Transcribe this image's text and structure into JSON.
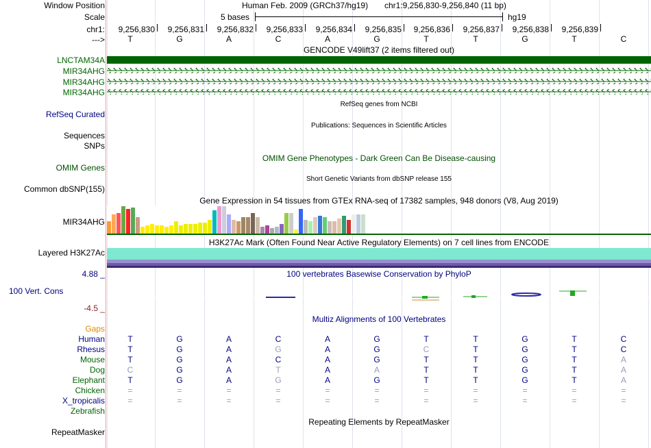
{
  "position": {
    "label": "Window Position",
    "assembly": "Human Feb. 2009 (GRCh37/hg19)",
    "coords": "chr1:9,256,830-9,256,840 (11 bp)"
  },
  "scale": {
    "label": "Scale",
    "bar_text": "5 bases",
    "db": "hg19"
  },
  "ruler": {
    "chrom_label": "chr1:",
    "strand_label": "--->",
    "ticks": [
      "9,256,830",
      "9,256,831",
      "9,256,832",
      "9,256,833",
      "9,256,834",
      "9,256,835",
      "9,256,836",
      "9,256,837",
      "9,256,838",
      "9,256,839"
    ]
  },
  "bases": [
    "T",
    "G",
    "A",
    "C",
    "A",
    "G",
    "T",
    "T",
    "G",
    "T",
    "C"
  ],
  "gencode": {
    "title": "GENCODE V49lift37 (2 items filtered out)",
    "items": [
      "LNCTAM34A",
      "MIR34AHG",
      "MIR34AHG",
      "MIR34AHG"
    ],
    "color": "#006400"
  },
  "refseq": {
    "label": "RefSeq Curated",
    "title": "RefSeq genes from NCBI"
  },
  "publications": {
    "label_1": "Sequences",
    "label_2": "SNPs",
    "title": "Publications: Sequences in Scientific Articles"
  },
  "omim": {
    "label": "OMIM Genes",
    "title": "OMIM Gene Phenotypes - Dark Green Can Be Disease-causing"
  },
  "dbsnp": {
    "label": "Common dbSNP(155)",
    "title": "Short Genetic Variants from dbSNP release 155"
  },
  "gtex": {
    "title": "Gene Expression in 54 tissues from GTEx RNA-seq of 17382 samples, 948 donors (V8, Aug 2019)",
    "label": "MIR34AHG",
    "levels": [
      0.45,
      0.7,
      0.75,
      1.0,
      0.9,
      0.95,
      0.6,
      0.25,
      0.3,
      0.35,
      0.3,
      0.3,
      0.25,
      0.3,
      0.45,
      0.3,
      0.35,
      0.35,
      0.35,
      0.4,
      0.4,
      0.5,
      0.85,
      1.0,
      1.0,
      0.7,
      0.5,
      0.45,
      0.6,
      0.6,
      0.75,
      0.6,
      0.25,
      0.3,
      0.2,
      0.25,
      0.35,
      0.75,
      0.75,
      0.15,
      0.9,
      0.5,
      0.45,
      0.6,
      0.65,
      0.6,
      0.45,
      0.45,
      0.55,
      0.65,
      0.5,
      0.7,
      0.7,
      0.7
    ],
    "colors": [
      "#ff9933",
      "#ffaa55",
      "#ff5555",
      "#66aa44",
      "#ff2222",
      "#55aa55",
      "#cc9988",
      "#ffee00",
      "#ffee00",
      "#ffee00",
      "#ffee00",
      "#ffee00",
      "#ffee00",
      "#ffee00",
      "#eeee00",
      "#eeee00",
      "#eeee00",
      "#eeee00",
      "#eeee00",
      "#eeee00",
      "#eeee00",
      "#eeee00",
      "#00bbbb",
      "#ee99cc",
      "#ccccdd",
      "#aaaaff",
      "#ddbbaa",
      "#cc9966",
      "#998866",
      "#aa8866",
      "#776655",
      "#ccbbaa",
      "#aa88aa",
      "#aa4499",
      "#aaaaaa",
      "#aabbcc",
      "#8866bb",
      "#99cc44",
      "#cccccc",
      "#ffee44",
      "#3366ff",
      "#bbbbbb",
      "#aaeeaa",
      "#ddccbb",
      "#3377dd",
      "#66cc77",
      "#ccbbbb",
      "#ddbbaa",
      "#ddccaa",
      "#339977",
      "#cc3333",
      "#eeeeee",
      "#bbccdd",
      "#ccddcc"
    ]
  },
  "h3k27ac": {
    "label": "Layered H3K27Ac",
    "title": "H3K27Ac Mark (Often Found Near Active Regulatory Elements) on 7 cell lines from ENCODE",
    "colors": [
      "#7fe8d0",
      "#9a8fd0",
      "#6e5aa6",
      "#3c2a78"
    ]
  },
  "conservation": {
    "label": "100 Vert. Cons",
    "max": "4.88 _",
    "min": "-4.5 _",
    "title": "100 vertebrates Basewise Conservation by PhyloP"
  },
  "multiz": {
    "title": "Multiz Alignments of 100 Vertebrates",
    "gaps_label": "Gaps",
    "species": [
      {
        "name": "Human",
        "color": "#000080",
        "bases": [
          "T",
          "G",
          "A",
          "C",
          "A",
          "G",
          "T",
          "T",
          "G",
          "T",
          "C"
        ],
        "diff": [
          false,
          false,
          false,
          false,
          false,
          false,
          false,
          false,
          false,
          false,
          false
        ]
      },
      {
        "name": "Rhesus",
        "color": "#000080",
        "bases": [
          "T",
          "G",
          "A",
          "G",
          "A",
          "G",
          "C",
          "T",
          "G",
          "T",
          "C"
        ],
        "diff": [
          false,
          false,
          false,
          true,
          false,
          false,
          true,
          false,
          false,
          false,
          false
        ]
      },
      {
        "name": "Mouse",
        "color": "#006400",
        "bases": [
          "T",
          "G",
          "A",
          "C",
          "A",
          "G",
          "T",
          "T",
          "G",
          "T",
          "A"
        ],
        "diff": [
          false,
          false,
          false,
          false,
          false,
          false,
          false,
          false,
          false,
          false,
          true
        ]
      },
      {
        "name": "Dog",
        "color": "#006400",
        "bases": [
          "C",
          "G",
          "A",
          "T",
          "A",
          "A",
          "T",
          "T",
          "G",
          "T",
          "A"
        ],
        "diff": [
          true,
          false,
          false,
          true,
          false,
          true,
          false,
          false,
          false,
          false,
          true
        ]
      },
      {
        "name": "Elephant",
        "color": "#006400",
        "bases": [
          "T",
          "G",
          "A",
          "G",
          "A",
          "G",
          "T",
          "T",
          "G",
          "T",
          "A"
        ],
        "diff": [
          false,
          false,
          false,
          true,
          false,
          false,
          false,
          false,
          false,
          false,
          true
        ]
      },
      {
        "name": "Chicken",
        "color": "#006400",
        "bases": [
          "=",
          "=",
          "=",
          "=",
          "=",
          "=",
          "=",
          "=",
          "=",
          "=",
          "="
        ],
        "diff": [
          true,
          true,
          true,
          true,
          true,
          true,
          true,
          true,
          true,
          true,
          true
        ]
      },
      {
        "name": "X_tropicalis",
        "color": "#000080",
        "bases": [
          "=",
          "=",
          "=",
          "=",
          "=",
          "=",
          "=",
          "=",
          "=",
          "=",
          "="
        ],
        "diff": [
          true,
          true,
          true,
          true,
          true,
          true,
          true,
          true,
          true,
          true,
          true
        ]
      },
      {
        "name": "Zebrafish",
        "color": "#006400",
        "bases": [
          "",
          "",
          "",
          "",
          "",
          "",
          "",
          "",
          "",
          "",
          ""
        ],
        "diff": [
          false,
          false,
          false,
          false,
          false,
          false,
          false,
          false,
          false,
          false,
          false
        ]
      }
    ]
  },
  "repeatmasker": {
    "label": "RepeatMasker",
    "title": "Repeating Elements by RepeatMasker"
  }
}
